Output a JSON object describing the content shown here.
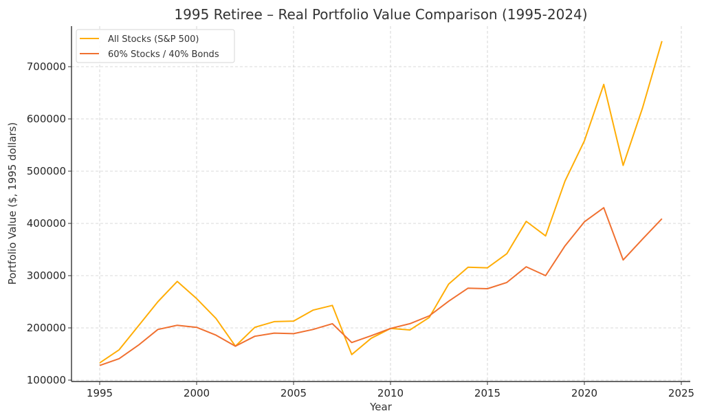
{
  "chart_data": {
    "type": "line",
    "title": "1995 Retiree – Real Portfolio Value Comparison (1995-2024)",
    "xlabel": "Year",
    "ylabel": "Portfolio Value ($, 1995 dollars)",
    "xlim": [
      1993.5,
      2025.5
    ],
    "ylim": [
      100000,
      760000
    ],
    "xticks": [
      1995,
      2000,
      2005,
      2010,
      2015,
      2020,
      2025
    ],
    "xtick_labels": [
      "1995",
      "2000",
      "2005",
      "2010",
      "2015",
      "2020",
      "2025"
    ],
    "yticks": [
      100000,
      200000,
      300000,
      400000,
      500000,
      600000,
      700000
    ],
    "ytick_labels": [
      "100000",
      "200000",
      "300000",
      "400000",
      "500000",
      "600000",
      "700000"
    ],
    "grid": true,
    "legend_position": "top-left",
    "x": [
      1995,
      1996,
      1997,
      1998,
      1999,
      2000,
      2001,
      2002,
      2003,
      2004,
      2005,
      2006,
      2007,
      2008,
      2009,
      2010,
      2011,
      2012,
      2013,
      2014,
      2015,
      2016,
      2017,
      2018,
      2019,
      2020,
      2021,
      2022,
      2023,
      2024
    ],
    "series": [
      {
        "name": "All Stocks (S&P 500)",
        "color": "#FFAD05",
        "values": [
          133000,
          158000,
          204000,
          250000,
          289000,
          256000,
          218000,
          165000,
          201000,
          212000,
          213000,
          234000,
          243000,
          149000,
          180000,
          199000,
          196000,
          220000,
          284000,
          316000,
          315000,
          342000,
          404000,
          376000,
          481000,
          558000,
          666000,
          511000,
          621000,
          749000
        ]
      },
      {
        "name": "60% Stocks / 40% Bonds",
        "color": "#F07030",
        "values": [
          128000,
          141000,
          167000,
          197000,
          205000,
          201000,
          186000,
          165000,
          184000,
          190000,
          189000,
          197000,
          208000,
          172000,
          185000,
          199000,
          208000,
          223000,
          251000,
          276000,
          275000,
          287000,
          317000,
          300000,
          357000,
          403000,
          430000,
          330000,
          370000,
          409000
        ]
      }
    ]
  }
}
